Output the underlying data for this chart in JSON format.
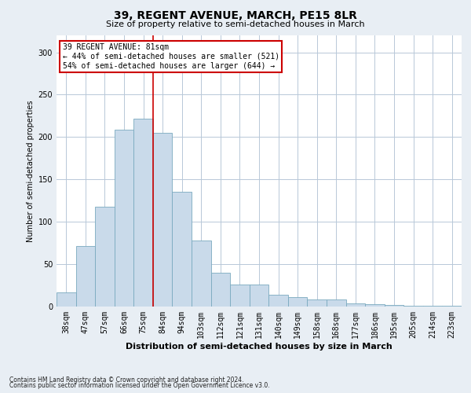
{
  "title": "39, REGENT AVENUE, MARCH, PE15 8LR",
  "subtitle": "Size of property relative to semi-detached houses in March",
  "xlabel": "Distribution of semi-detached houses by size in March",
  "ylabel": "Number of semi-detached properties",
  "categories": [
    "38sqm",
    "47sqm",
    "57sqm",
    "66sqm",
    "75sqm",
    "84sqm",
    "94sqm",
    "103sqm",
    "112sqm",
    "121sqm",
    "131sqm",
    "140sqm",
    "149sqm",
    "158sqm",
    "168sqm",
    "177sqm",
    "186sqm",
    "195sqm",
    "205sqm",
    "214sqm",
    "223sqm"
  ],
  "values": [
    17,
    71,
    118,
    209,
    222,
    205,
    135,
    78,
    40,
    26,
    26,
    14,
    11,
    8,
    8,
    4,
    3,
    2,
    1,
    1,
    1
  ],
  "bar_color": "#c9daea",
  "bar_edge_color": "#7aaabf",
  "vline_color": "#cc0000",
  "vline_x": 4.5,
  "annotation_text": "39 REGENT AVENUE: 81sqm\n← 44% of semi-detached houses are smaller (521)\n54% of semi-detached houses are larger (644) →",
  "annotation_box_facecolor": "white",
  "annotation_box_edgecolor": "#cc0000",
  "footer_line1": "Contains HM Land Registry data © Crown copyright and database right 2024.",
  "footer_line2": "Contains public sector information licensed under the Open Government Licence v3.0.",
  "ylim": [
    0,
    320
  ],
  "yticks": [
    0,
    50,
    100,
    150,
    200,
    250,
    300
  ],
  "background_color": "#e8eef4",
  "plot_background_color": "#ffffff",
  "grid_color": "#b8c8d8",
  "title_fontsize": 10,
  "subtitle_fontsize": 8,
  "xlabel_fontsize": 8,
  "ylabel_fontsize": 7,
  "tick_fontsize": 7,
  "annotation_fontsize": 7,
  "footer_fontsize": 5.5
}
